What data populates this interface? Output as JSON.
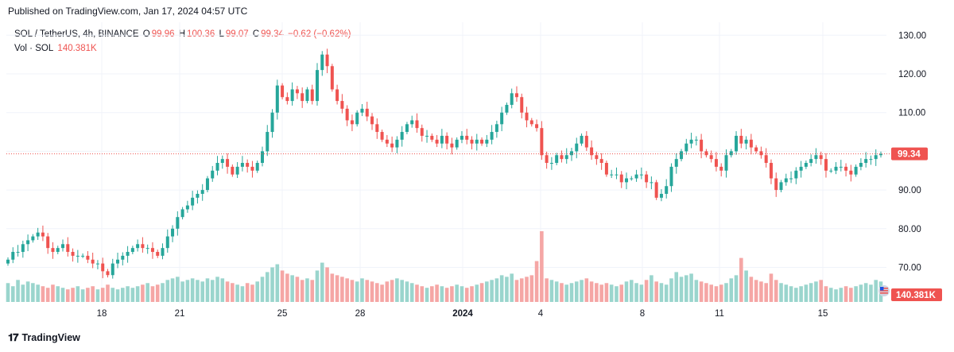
{
  "header": {
    "published": "Published on TradingView.com, Jan 17, 2024 04:57 UTC"
  },
  "legend": {
    "symbol": "SOL / TetherUS, 4h, BINANCE",
    "open_label": "O",
    "open": "99.96",
    "high_label": "H",
    "high": "100.36",
    "low_label": "L",
    "low": "99.07",
    "close_label": "C",
    "close": "99.34",
    "change": "−0.62 (−0.62%)",
    "volume_label": "Vol · SOL",
    "volume": "140.381K"
  },
  "footer": {
    "brand": "TradingView",
    "logo_icon": "tradingview-logo-icon"
  },
  "colors": {
    "up": "#26a69a",
    "down": "#ef5350",
    "up_volume": "#9ad5cd",
    "down_volume": "#f5a6a5",
    "grid": "#f0f3fa"
  },
  "chart_data": {
    "type": "candlestick",
    "interval": "4h",
    "ylim": [
      63,
      133
    ],
    "y_ticks": [
      "130.00",
      "120.00",
      "110.00",
      "100.00",
      "90.00",
      "80.00",
      "70.00"
    ],
    "x_ticks": [
      "18",
      "21",
      "25",
      "28",
      "2024",
      "4",
      "8",
      "11",
      "15"
    ],
    "last_price": "99.34",
    "last_volume": "140.381K",
    "grid": true,
    "closes": [
      72,
      74,
      74,
      76,
      77,
      78,
      79,
      78,
      75,
      74,
      75,
      76,
      74,
      73,
      73,
      73,
      72,
      71,
      71,
      69,
      68,
      71,
      72,
      73,
      74,
      75,
      76,
      75,
      75,
      74,
      73,
      75,
      78,
      80,
      83,
      85,
      86,
      88,
      89,
      90,
      93,
      95,
      97,
      98,
      96,
      94,
      96,
      97,
      96,
      95,
      97,
      100,
      105,
      110,
      117,
      114,
      113,
      116,
      115,
      113,
      116,
      113,
      121,
      125,
      122,
      116,
      113,
      111,
      108,
      107,
      110,
      111,
      109,
      107,
      105,
      103,
      102,
      101,
      103,
      105,
      107,
      108,
      106,
      104,
      104,
      103,
      102,
      104,
      102,
      101,
      103,
      104,
      103,
      102,
      103,
      102,
      103,
      105,
      107,
      110,
      112,
      115,
      114,
      110,
      108,
      107,
      106,
      99,
      97,
      97,
      99,
      98,
      99,
      100,
      102,
      104,
      101,
      99,
      98,
      97,
      94,
      94,
      94,
      92,
      93,
      93,
      94,
      94,
      92,
      92,
      88,
      89,
      91,
      96,
      98,
      100,
      102,
      103,
      103,
      100,
      99,
      98,
      96,
      95,
      99,
      100,
      104,
      102,
      103,
      101,
      100,
      99,
      97,
      93,
      90,
      92,
      93,
      93,
      95,
      96,
      97,
      98,
      99,
      98,
      95,
      95,
      96,
      96,
      95,
      94,
      96,
      97,
      98,
      98,
      99,
      99.34
    ],
    "volumes": [
      12,
      10,
      14,
      11,
      13,
      12,
      11,
      10,
      9,
      11,
      10,
      9,
      8,
      9,
      10,
      8,
      9,
      10,
      8,
      9,
      11,
      9,
      8,
      9,
      10,
      9,
      10,
      11,
      12,
      10,
      11,
      12,
      14,
      15,
      16,
      13,
      14,
      15,
      14,
      13,
      15,
      14,
      16,
      15,
      13,
      12,
      11,
      10,
      12,
      11,
      13,
      16,
      19,
      22,
      24,
      20,
      18,
      17,
      16,
      14,
      15,
      14,
      20,
      25,
      22,
      18,
      17,
      16,
      15,
      14,
      13,
      15,
      14,
      13,
      12,
      11,
      13,
      14,
      15,
      14,
      13,
      12,
      11,
      10,
      9,
      10,
      11,
      10,
      9,
      10,
      11,
      10,
      9,
      10,
      11,
      12,
      13,
      14,
      15,
      17,
      16,
      18,
      14,
      15,
      16,
      17,
      26,
      45,
      15,
      14,
      13,
      12,
      11,
      12,
      13,
      14,
      15,
      13,
      12,
      11,
      12,
      11,
      10,
      11,
      13,
      14,
      12,
      11,
      14,
      17,
      13,
      12,
      11,
      15,
      19,
      16,
      17,
      18,
      14,
      13,
      12,
      11,
      10,
      11,
      12,
      15,
      17,
      28,
      20,
      16,
      14,
      13,
      12,
      18,
      14,
      12,
      11,
      10,
      9,
      10,
      11,
      12,
      13,
      14,
      10,
      9,
      8,
      9,
      10,
      9,
      10,
      11,
      12,
      11,
      14,
      13
    ]
  }
}
